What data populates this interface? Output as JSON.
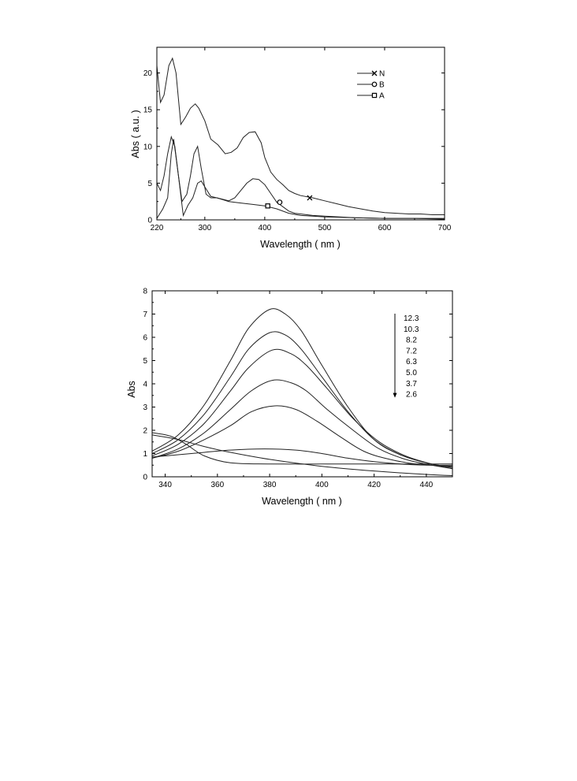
{
  "chart_data": [
    {
      "type": "line",
      "xlabel": "Wavelength ( nm )",
      "ylabel": "Abs ( a.u. )",
      "xlim": [
        220,
        700
      ],
      "ylim": [
        0,
        23.5
      ],
      "xticks": [
        220,
        300,
        400,
        500,
        600,
        700
      ],
      "yticks": [
        0,
        5,
        10,
        15,
        20
      ],
      "legend_position": "top-right",
      "grid": false,
      "series": [
        {
          "name": "N",
          "marker": "x",
          "marker_at": [
            475,
            3.0
          ],
          "x": [
            220,
            226,
            232,
            240,
            246,
            252,
            260,
            268,
            276,
            284,
            290,
            300,
            310,
            322,
            334,
            344,
            354,
            364,
            374,
            384,
            394,
            400,
            410,
            420,
            430,
            440,
            450,
            460,
            480,
            500,
            520,
            540,
            560,
            580,
            600,
            620,
            640,
            660,
            680,
            700
          ],
          "y": [
            21.0,
            16.0,
            17.0,
            21.0,
            22.0,
            20.0,
            13.0,
            14.0,
            15.2,
            15.8,
            15.2,
            13.5,
            11.0,
            10.2,
            9.0,
            9.2,
            9.8,
            11.2,
            11.9,
            12.0,
            10.5,
            8.5,
            6.5,
            5.5,
            4.8,
            4.0,
            3.6,
            3.3,
            3.0,
            2.6,
            2.2,
            1.8,
            1.5,
            1.2,
            1.0,
            0.9,
            0.8,
            0.8,
            0.7,
            0.7
          ]
        },
        {
          "name": "B",
          "marker": "circle",
          "marker_at": [
            425,
            2.4
          ],
          "x": [
            220,
            226,
            232,
            238,
            244,
            250,
            256,
            262,
            270,
            276,
            282,
            288,
            294,
            302,
            310,
            320,
            330,
            340,
            350,
            360,
            370,
            380,
            390,
            400,
            410,
            420,
            430,
            440,
            450,
            460,
            480,
            500,
            550,
            600,
            650,
            700
          ],
          "y": [
            5.0,
            4.0,
            6.0,
            9.0,
            11.3,
            10.0,
            6.0,
            2.5,
            3.5,
            6.0,
            9.0,
            10.0,
            7.0,
            3.5,
            3.0,
            3.0,
            2.8,
            2.6,
            3.0,
            4.0,
            5.0,
            5.6,
            5.5,
            4.8,
            3.6,
            2.4,
            1.8,
            1.2,
            0.9,
            0.8,
            0.6,
            0.5,
            0.3,
            0.2,
            0.2,
            0.1
          ]
        },
        {
          "name": "A",
          "marker": "square",
          "marker_at": [
            405,
            1.9
          ],
          "x": [
            220,
            230,
            238,
            244,
            248,
            256,
            264,
            272,
            280,
            288,
            294,
            300,
            310,
            320,
            340,
            360,
            380,
            400,
            420,
            440,
            460,
            480,
            500,
            550,
            600,
            650,
            700
          ],
          "y": [
            0.2,
            1.5,
            3.0,
            9.0,
            11.0,
            6.0,
            0.6,
            2.0,
            3.0,
            5.0,
            5.3,
            4.5,
            3.2,
            3.0,
            2.5,
            2.3,
            2.1,
            1.9,
            1.5,
            0.9,
            0.6,
            0.5,
            0.4,
            0.3,
            0.2,
            0.2,
            0.2
          ]
        }
      ]
    },
    {
      "type": "line",
      "xlabel": "Wavelength ( nm )",
      "ylabel": "Abs",
      "xlim": [
        335,
        450
      ],
      "ylim": [
        0,
        8
      ],
      "xticks": [
        340,
        360,
        380,
        400,
        420,
        440
      ],
      "yticks": [
        0,
        1,
        2,
        3,
        4,
        5,
        6,
        7,
        8
      ],
      "legend_position": "top-right",
      "legend_arrow": "down",
      "grid": false,
      "labels": [
        "12.3",
        "10.3",
        "8.2",
        "7.2",
        "6.3",
        "5.0",
        "3.7",
        "2.6"
      ],
      "series": [
        {
          "name": "12.3",
          "x": [
            335,
            345,
            355,
            365,
            372,
            380,
            386,
            392,
            400,
            410,
            420,
            430,
            440,
            450
          ],
          "y": [
            1.1,
            1.8,
            3.1,
            5.0,
            6.4,
            7.2,
            7.0,
            6.3,
            4.8,
            3.0,
            1.6,
            0.95,
            0.6,
            0.4
          ]
        },
        {
          "name": "10.3",
          "x": [
            335,
            345,
            355,
            365,
            372,
            380,
            386,
            392,
            400,
            410,
            420,
            430,
            440,
            450
          ],
          "y": [
            1.0,
            1.6,
            2.7,
            4.3,
            5.5,
            6.2,
            6.1,
            5.5,
            4.3,
            2.8,
            1.6,
            0.95,
            0.6,
            0.4
          ]
        },
        {
          "name": "8.2",
          "x": [
            335,
            345,
            355,
            365,
            372,
            381,
            388,
            394,
            402,
            412,
            422,
            432,
            442,
            450
          ],
          "y": [
            0.9,
            1.4,
            2.3,
            3.7,
            4.7,
            5.45,
            5.3,
            4.8,
            3.8,
            2.5,
            1.5,
            0.9,
            0.55,
            0.35
          ]
        },
        {
          "name": "7.2",
          "x": [
            335,
            345,
            355,
            365,
            373,
            381,
            388,
            394,
            402,
            412,
            422,
            432,
            442,
            450
          ],
          "y": [
            0.8,
            1.2,
            1.9,
            2.9,
            3.7,
            4.15,
            4.05,
            3.7,
            2.9,
            2.0,
            1.2,
            0.75,
            0.5,
            0.35
          ]
        },
        {
          "name": "6.3",
          "x": [
            335,
            345,
            355,
            365,
            373,
            382,
            390,
            398,
            406,
            416,
            426,
            436,
            445,
            450
          ],
          "y": [
            0.8,
            1.1,
            1.6,
            2.2,
            2.8,
            3.05,
            2.9,
            2.4,
            1.8,
            1.1,
            0.75,
            0.55,
            0.48,
            0.45
          ]
        },
        {
          "name": "5.0",
          "x": [
            335,
            345,
            355,
            365,
            378,
            390,
            400,
            410,
            420,
            430,
            440,
            450
          ],
          "y": [
            0.85,
            0.95,
            1.05,
            1.15,
            1.2,
            1.15,
            1.0,
            0.8,
            0.65,
            0.55,
            0.5,
            0.5
          ]
        },
        {
          "name": "3.7",
          "x": [
            335,
            342,
            348,
            355,
            365,
            380,
            400,
            420,
            440,
            450
          ],
          "y": [
            1.9,
            1.75,
            1.4,
            0.9,
            0.6,
            0.55,
            0.55,
            0.55,
            0.55,
            0.55
          ]
        },
        {
          "name": "2.6",
          "x": [
            335,
            345,
            355,
            365,
            380,
            400,
            420,
            440,
            450
          ],
          "y": [
            1.8,
            1.6,
            1.3,
            1.05,
            0.75,
            0.45,
            0.25,
            0.1,
            0.05
          ]
        }
      ]
    }
  ]
}
